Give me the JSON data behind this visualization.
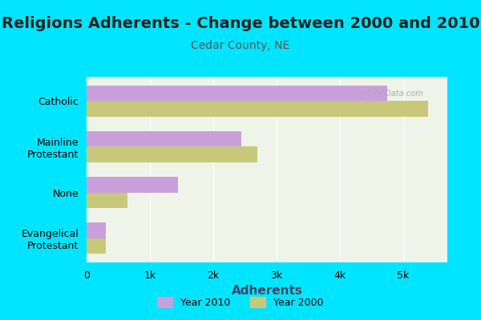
{
  "title": "Religions Adherents - Change between 2000 and 2010",
  "subtitle": "Cedar County, NE",
  "xlabel": "Adherents",
  "categories": [
    "Evangelical\nProtestant",
    "None",
    "Mainline\nProtestant",
    "Catholic"
  ],
  "values_2010": [
    300,
    1450,
    2450,
    4750
  ],
  "values_2000": [
    300,
    650,
    2700,
    5400
  ],
  "color_2010": "#c9a0dc",
  "color_2000": "#c8c87a",
  "bg_outer": "#00e5ff",
  "bg_inner": "#eef5e8",
  "xticks": [
    0,
    1000,
    2000,
    3000,
    4000,
    5000
  ],
  "xtick_labels": [
    "0",
    "1k",
    "2k",
    "3k",
    "4k",
    "5k"
  ],
  "xlim": [
    0,
    5700
  ],
  "bar_height": 0.35,
  "legend_label_2010": "Year 2010",
  "legend_label_2000": "Year 2000",
  "title_fontsize": 14,
  "subtitle_fontsize": 10,
  "xlabel_fontsize": 11,
  "ytick_fontsize": 9,
  "xtick_fontsize": 9
}
